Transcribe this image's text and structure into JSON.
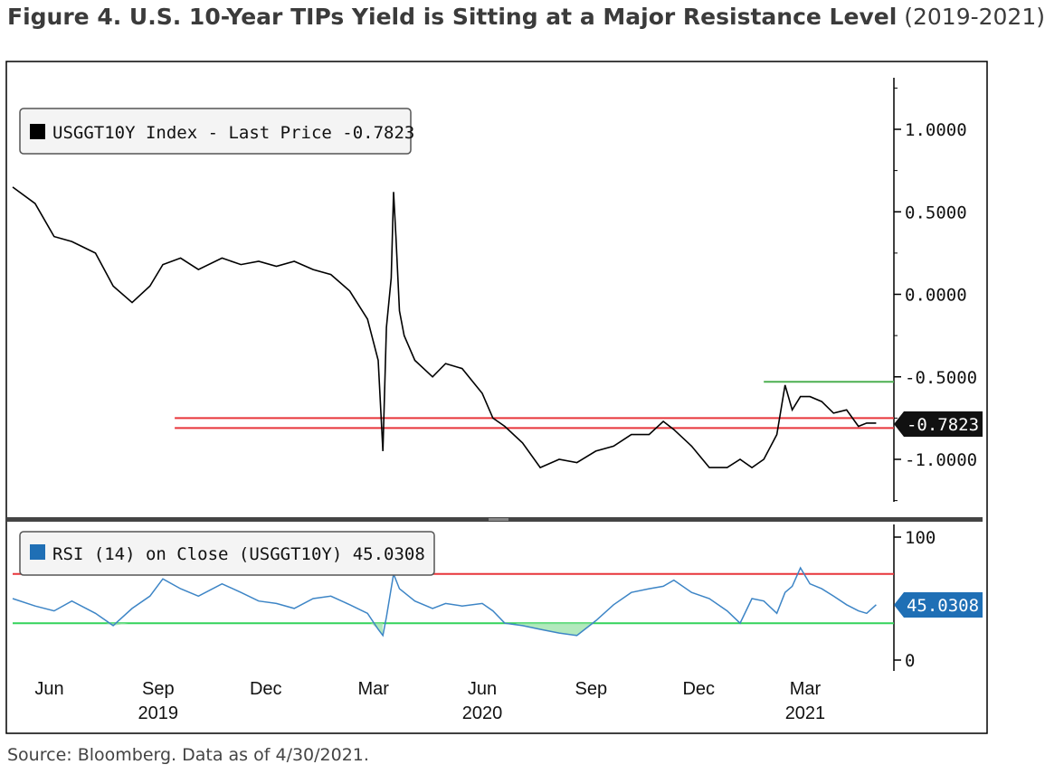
{
  "title": {
    "main": "Figure 4. U.S. 10-Year TIPs Yield is Sitting at a Major Resistance Level",
    "range": "(2019-2021)"
  },
  "source": "Source: Bloomberg. Data as of 4/30/2021.",
  "colors": {
    "price_line": "#000000",
    "rsi_line": "#3d85c6",
    "overbought": "#e8353a",
    "oversold": "#33d35a",
    "resistance_support": "#e8353a",
    "green_level": "#4caf50",
    "rsi_tag": "#1f6fb5"
  },
  "chart_data": [
    {
      "type": "line",
      "legend": "USGGT10Y Index - Last Price -0.7823",
      "legend_placement": "top-left",
      "last_value_label": "-0.7823",
      "y_ticks": [
        "1.0000",
        "0.5000",
        "0.0000",
        "-0.5000",
        "-1.0000"
      ],
      "y_tick_values": [
        1.0,
        0.5,
        0.0,
        -0.5,
        -1.0
      ],
      "ylim": [
        -1.25,
        1.3
      ],
      "x_tick_labels": [
        "Jun",
        "Sep",
        "Dec",
        "Mar",
        "Jun",
        "Sep",
        "Dec",
        "Mar"
      ],
      "x_year_labels": [
        "2019",
        "2020",
        "2021"
      ],
      "xlim": [
        "2019-05-01",
        "2021-05-15"
      ],
      "horizontal_lines": [
        {
          "y": -0.75,
          "from": "2019-09-15",
          "to": "2021-05-15",
          "color": "red"
        },
        {
          "y": -0.81,
          "from": "2019-09-15",
          "to": "2021-05-15",
          "color": "red"
        },
        {
          "y": -0.53,
          "from": "2021-01-25",
          "to": "2021-05-15",
          "color": "green"
        }
      ],
      "series": [
        {
          "x": [
            "2019-05-01",
            "2019-05-20",
            "2019-06-05",
            "2019-06-20",
            "2019-07-10",
            "2019-07-25",
            "2019-08-10",
            "2019-08-25",
            "2019-09-05",
            "2019-09-20",
            "2019-10-05",
            "2019-10-25",
            "2019-11-10",
            "2019-11-25",
            "2019-12-10",
            "2019-12-25",
            "2020-01-10",
            "2020-01-25",
            "2020-02-10",
            "2020-02-25",
            "2020-03-05",
            "2020-03-09",
            "2020-03-12",
            "2020-03-16",
            "2020-03-18",
            "2020-03-20",
            "2020-03-23",
            "2020-03-27",
            "2020-04-05",
            "2020-04-20",
            "2020-05-01",
            "2020-05-15",
            "2020-06-01",
            "2020-06-10",
            "2020-06-20",
            "2020-07-05",
            "2020-07-20",
            "2020-08-05",
            "2020-08-20",
            "2020-09-05",
            "2020-09-20",
            "2020-10-05",
            "2020-10-20",
            "2020-11-01",
            "2020-11-10",
            "2020-11-25",
            "2020-12-10",
            "2020-12-25",
            "2021-01-05",
            "2021-01-15",
            "2021-01-25",
            "2021-02-05",
            "2021-02-12",
            "2021-02-18",
            "2021-02-25",
            "2021-03-05",
            "2021-03-15",
            "2021-03-25",
            "2021-04-05",
            "2021-04-15",
            "2021-04-22",
            "2021-04-30"
          ],
          "values": [
            0.65,
            0.55,
            0.35,
            0.32,
            0.25,
            0.05,
            -0.05,
            0.05,
            0.18,
            0.22,
            0.15,
            0.22,
            0.18,
            0.2,
            0.17,
            0.2,
            0.15,
            0.12,
            0.02,
            -0.15,
            -0.4,
            -0.95,
            -0.2,
            0.1,
            0.62,
            0.35,
            -0.1,
            -0.25,
            -0.4,
            -0.5,
            -0.42,
            -0.45,
            -0.6,
            -0.75,
            -0.8,
            -0.9,
            -1.05,
            -1.0,
            -1.02,
            -0.95,
            -0.92,
            -0.85,
            -0.85,
            -0.77,
            -0.82,
            -0.92,
            -1.05,
            -1.05,
            -1.0,
            -1.05,
            -1.0,
            -0.85,
            -0.55,
            -0.7,
            -0.62,
            -0.62,
            -0.65,
            -0.72,
            -0.7,
            -0.8,
            -0.78,
            -0.78
          ]
        }
      ]
    },
    {
      "type": "line",
      "legend": "RSI (14)  on Close (USGGT10Y) 45.0308",
      "legend_placement": "top-left",
      "last_value_label": "45.0308",
      "y_ticks": [
        "100",
        "0"
      ],
      "y_tick_values": [
        100,
        0
      ],
      "ylim": [
        0,
        100
      ],
      "xlim": [
        "2019-05-01",
        "2021-05-15"
      ],
      "horizontal_lines": [
        {
          "y": 70,
          "color": "red"
        },
        {
          "y": 30,
          "color": "green"
        }
      ],
      "series": [
        {
          "x": [
            "2019-05-01",
            "2019-05-20",
            "2019-06-05",
            "2019-06-20",
            "2019-07-10",
            "2019-07-25",
            "2019-08-10",
            "2019-08-25",
            "2019-09-05",
            "2019-09-20",
            "2019-10-05",
            "2019-10-25",
            "2019-11-10",
            "2019-11-25",
            "2019-12-10",
            "2019-12-25",
            "2020-01-10",
            "2020-01-25",
            "2020-02-10",
            "2020-02-25",
            "2020-03-05",
            "2020-03-09",
            "2020-03-12",
            "2020-03-18",
            "2020-03-23",
            "2020-04-05",
            "2020-04-20",
            "2020-05-01",
            "2020-05-15",
            "2020-06-01",
            "2020-06-10",
            "2020-06-20",
            "2020-07-05",
            "2020-07-20",
            "2020-08-05",
            "2020-08-20",
            "2020-09-05",
            "2020-09-20",
            "2020-10-05",
            "2020-10-20",
            "2020-11-01",
            "2020-11-10",
            "2020-11-25",
            "2020-12-10",
            "2020-12-25",
            "2021-01-05",
            "2021-01-15",
            "2021-01-25",
            "2021-02-05",
            "2021-02-12",
            "2021-02-18",
            "2021-02-25",
            "2021-03-05",
            "2021-03-15",
            "2021-03-25",
            "2021-04-05",
            "2021-04-15",
            "2021-04-22",
            "2021-04-30"
          ],
          "values": [
            50,
            44,
            40,
            48,
            38,
            28,
            42,
            52,
            66,
            58,
            52,
            62,
            55,
            48,
            46,
            42,
            50,
            52,
            45,
            38,
            25,
            20,
            35,
            70,
            58,
            48,
            42,
            46,
            44,
            46,
            40,
            30,
            28,
            25,
            22,
            20,
            32,
            45,
            55,
            58,
            60,
            65,
            55,
            50,
            40,
            30,
            50,
            48,
            38,
            55,
            60,
            75,
            62,
            58,
            52,
            45,
            40,
            38,
            45
          ]
        }
      ]
    }
  ]
}
